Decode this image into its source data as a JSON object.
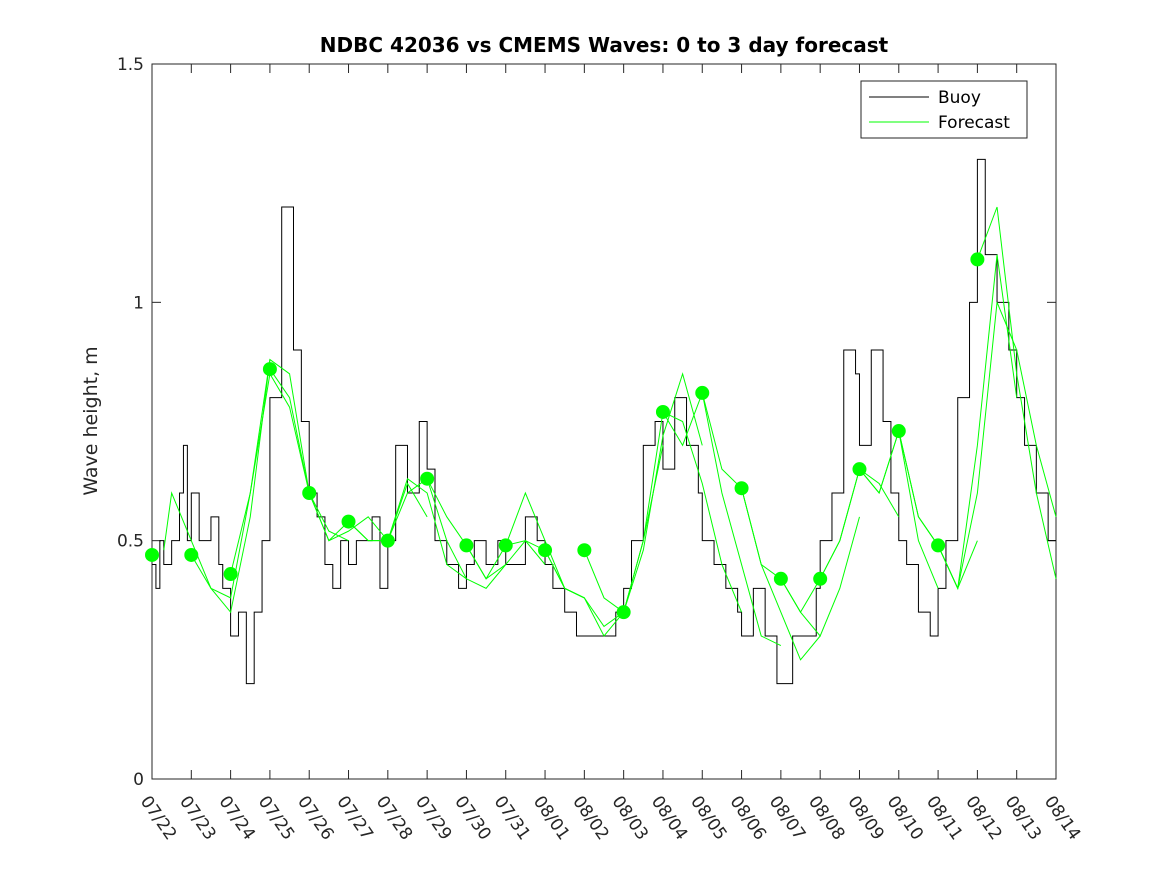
{
  "chart_data": {
    "type": "line",
    "title": "NDBC 42036 vs CMEMS Waves: 0 to 3 day forecast",
    "xlabel": "",
    "ylabel": "Wave height, m",
    "ylim": [
      0,
      1.5
    ],
    "xlim": [
      "07/22",
      "08/14"
    ],
    "x_ticks": [
      "07/22",
      "07/23",
      "07/24",
      "07/25",
      "07/26",
      "07/27",
      "07/28",
      "07/29",
      "07/30",
      "07/31",
      "08/01",
      "08/02",
      "08/03",
      "08/04",
      "08/05",
      "08/06",
      "08/07",
      "08/08",
      "08/09",
      "08/10",
      "08/11",
      "08/12",
      "08/13",
      "08/14"
    ],
    "y_ticks": [
      0,
      0.5,
      1,
      1.5
    ],
    "grid": false,
    "legend_position": "top-right",
    "series": [
      {
        "name": "Buoy",
        "color": "#000000",
        "style": "stepped line",
        "x": [
          0,
          0.1,
          0.2,
          0.3,
          0.5,
          0.7,
          0.8,
          0.9,
          1.0,
          1.2,
          1.5,
          1.7,
          1.8,
          2.0,
          2.2,
          2.4,
          2.6,
          2.8,
          3.0,
          3.3,
          3.6,
          3.8,
          4.0,
          4.2,
          4.4,
          4.6,
          4.8,
          5.0,
          5.2,
          5.4,
          5.6,
          5.8,
          6.0,
          6.2,
          6.5,
          6.8,
          7.0,
          7.2,
          7.5,
          7.8,
          8.0,
          8.2,
          8.5,
          8.8,
          9.0,
          9.2,
          9.5,
          9.8,
          10.0,
          10.2,
          10.5,
          10.8,
          11.0,
          11.2,
          11.5,
          11.8,
          12.0,
          12.2,
          12.5,
          12.8,
          13.0,
          13.3,
          13.6,
          13.9,
          14.0,
          14.3,
          14.6,
          14.9,
          15.0,
          15.3,
          15.6,
          15.9,
          16.0,
          16.3,
          16.6,
          16.9,
          17.0,
          17.3,
          17.6,
          17.9,
          18.0,
          18.3,
          18.6,
          18.8,
          19.0,
          19.2,
          19.5,
          19.8,
          20.0,
          20.2,
          20.5,
          20.8,
          21.0,
          21.2,
          21.5,
          21.8,
          22.0,
          22.2,
          22.5,
          22.8,
          23.0
        ],
        "y": [
          0.45,
          0.4,
          0.5,
          0.45,
          0.5,
          0.6,
          0.7,
          0.5,
          0.6,
          0.5,
          0.55,
          0.45,
          0.4,
          0.3,
          0.35,
          0.2,
          0.35,
          0.5,
          0.8,
          1.2,
          0.9,
          0.75,
          0.6,
          0.55,
          0.45,
          0.4,
          0.5,
          0.45,
          0.5,
          0.5,
          0.55,
          0.4,
          0.5,
          0.7,
          0.6,
          0.75,
          0.65,
          0.5,
          0.45,
          0.4,
          0.45,
          0.5,
          0.45,
          0.5,
          0.45,
          0.45,
          0.55,
          0.5,
          0.45,
          0.4,
          0.35,
          0.3,
          0.3,
          0.3,
          0.3,
          0.35,
          0.4,
          0.5,
          0.7,
          0.75,
          0.65,
          0.8,
          0.7,
          0.6,
          0.5,
          0.45,
          0.4,
          0.35,
          0.3,
          0.4,
          0.3,
          0.2,
          0.2,
          0.3,
          0.3,
          0.4,
          0.5,
          0.6,
          0.9,
          0.85,
          0.7,
          0.9,
          0.75,
          0.6,
          0.5,
          0.45,
          0.35,
          0.3,
          0.4,
          0.5,
          0.8,
          1.0,
          1.3,
          1.1,
          1.0,
          0.9,
          0.8,
          0.7,
          0.6,
          0.5,
          0.5
        ]
      },
      {
        "name": "Forecast",
        "color": "#00ff00",
        "style": "multiple overlapping forecast runs",
        "runs": [
          {
            "x": [
              0.3,
              0.5,
              1.0,
              1.5,
              2.0,
              2.5,
              3.0
            ],
            "y": [
              0.48,
              0.6,
              0.5,
              0.4,
              0.35,
              0.55,
              0.88
            ]
          },
          {
            "x": [
              1.0,
              1.5,
              2.0,
              2.5,
              3.0,
              3.5,
              4.0
            ],
            "y": [
              0.47,
              0.4,
              0.38,
              0.6,
              0.85,
              0.78,
              0.6
            ]
          },
          {
            "x": [
              2.0,
              2.5,
              3.0,
              3.5,
              4.0,
              4.5,
              5.0
            ],
            "y": [
              0.43,
              0.6,
              0.88,
              0.85,
              0.6,
              0.52,
              0.5
            ]
          },
          {
            "x": [
              3.0,
              3.5,
              4.0,
              4.5,
              5.0,
              5.5,
              6.0
            ],
            "y": [
              0.86,
              0.8,
              0.6,
              0.5,
              0.52,
              0.55,
              0.5
            ]
          },
          {
            "x": [
              4.0,
              4.5,
              5.0,
              5.5,
              6.0,
              6.5,
              7.0
            ],
            "y": [
              0.6,
              0.5,
              0.54,
              0.5,
              0.5,
              0.62,
              0.55
            ]
          },
          {
            "x": [
              5.0,
              5.5,
              6.0,
              6.5,
              7.0,
              7.5,
              8.0
            ],
            "y": [
              0.54,
              0.5,
              0.5,
              0.63,
              0.6,
              0.45,
              0.42
            ]
          },
          {
            "x": [
              6.0,
              6.5,
              7.0,
              7.5,
              8.0,
              8.5,
              9.0
            ],
            "y": [
              0.5,
              0.6,
              0.63,
              0.5,
              0.42,
              0.4,
              0.45
            ]
          },
          {
            "x": [
              7.0,
              7.5,
              8.0,
              8.5,
              9.0,
              9.5,
              10.0
            ],
            "y": [
              0.63,
              0.55,
              0.49,
              0.42,
              0.45,
              0.5,
              0.45
            ]
          },
          {
            "x": [
              8.0,
              8.5,
              9.0,
              9.5,
              10.0,
              10.5,
              11.0
            ],
            "y": [
              0.49,
              0.42,
              0.49,
              0.6,
              0.5,
              0.4,
              0.38
            ]
          },
          {
            "x": [
              9.0,
              9.5,
              10.0,
              10.5,
              11.0,
              11.5,
              12.0
            ],
            "y": [
              0.49,
              0.5,
              0.48,
              0.4,
              0.38,
              0.32,
              0.35
            ]
          },
          {
            "x": [
              10.0,
              10.5,
              11.0,
              11.5,
              12.0,
              12.5,
              13.0
            ],
            "y": [
              0.48,
              0.4,
              0.38,
              0.3,
              0.35,
              0.5,
              0.7
            ]
          },
          {
            "x": [
              11.0,
              11.5,
              12.0,
              12.5,
              13.0,
              13.5,
              14.0
            ],
            "y": [
              0.48,
              0.38,
              0.35,
              0.48,
              0.72,
              0.85,
              0.7
            ]
          },
          {
            "x": [
              12.0,
              12.5,
              13.0,
              13.5,
              14.0,
              14.5,
              15.0
            ],
            "y": [
              0.35,
              0.5,
              0.77,
              0.75,
              0.62,
              0.45,
              0.35
            ]
          },
          {
            "x": [
              13.0,
              13.5,
              14.0,
              14.5,
              15.0,
              15.5,
              16.0
            ],
            "y": [
              0.77,
              0.7,
              0.81,
              0.6,
              0.45,
              0.3,
              0.28
            ]
          },
          {
            "x": [
              14.0,
              14.5,
              15.0,
              15.5,
              16.0,
              16.5,
              17.0
            ],
            "y": [
              0.81,
              0.65,
              0.61,
              0.45,
              0.35,
              0.25,
              0.3
            ]
          },
          {
            "x": [
              15.0,
              15.5,
              16.0,
              16.5,
              17.0,
              17.5,
              18.0
            ],
            "y": [
              0.61,
              0.45,
              0.42,
              0.35,
              0.3,
              0.4,
              0.55
            ]
          },
          {
            "x": [
              16.0,
              16.5,
              17.0,
              17.5,
              18.0,
              18.5,
              19.0
            ],
            "y": [
              0.42,
              0.35,
              0.42,
              0.5,
              0.65,
              0.62,
              0.55
            ]
          },
          {
            "x": [
              17.0,
              17.5,
              18.0,
              18.5,
              19.0,
              19.5,
              20.0
            ],
            "y": [
              0.42,
              0.5,
              0.65,
              0.6,
              0.73,
              0.5,
              0.4
            ]
          },
          {
            "x": [
              18.0,
              18.5,
              19.0,
              19.5,
              20.0,
              20.5,
              21.0
            ],
            "y": [
              0.65,
              0.6,
              0.73,
              0.55,
              0.49,
              0.4,
              0.5
            ]
          },
          {
            "x": [
              19.0,
              19.5,
              20.0,
              20.5,
              21.0,
              21.5,
              22.0
            ],
            "y": [
              0.73,
              0.55,
              0.49,
              0.4,
              0.7,
              1.1,
              0.8
            ]
          },
          {
            "x": [
              20.0,
              20.5,
              21.0,
              21.5,
              22.0,
              22.5,
              23.0
            ],
            "y": [
              0.49,
              0.4,
              0.6,
              1.0,
              0.9,
              0.7,
              0.55
            ]
          },
          {
            "x": [
              21.0,
              21.5,
              22.0,
              22.5,
              23.0
            ],
            "y": [
              1.09,
              1.2,
              0.85,
              0.6,
              0.42
            ]
          }
        ],
        "markers": {
          "x": [
            0,
            1,
            2,
            3,
            4,
            5,
            6,
            7,
            8,
            9,
            10,
            11,
            12,
            13,
            14,
            15,
            16,
            17,
            18,
            19,
            20,
            21
          ],
          "y": [
            0.47,
            0.47,
            0.43,
            0.86,
            0.6,
            0.54,
            0.5,
            0.63,
            0.49,
            0.49,
            0.48,
            0.48,
            0.35,
            0.77,
            0.81,
            0.61,
            0.42,
            0.42,
            0.65,
            0.73,
            0.49,
            1.09
          ]
        }
      }
    ]
  }
}
